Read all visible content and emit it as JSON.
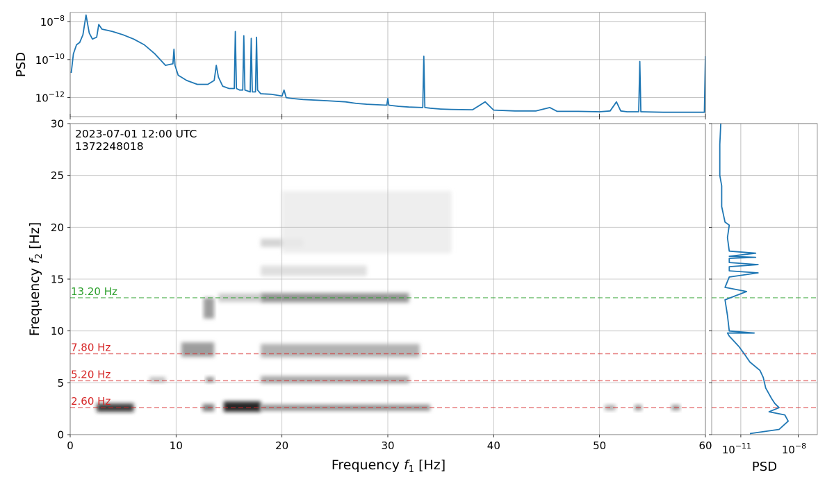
{
  "chart_data": [
    {
      "panel": "top-psd",
      "type": "line",
      "title": "",
      "xlabel": "",
      "ylabel": "PSD",
      "xlim": [
        0,
        60
      ],
      "ylim": [
        1e-13,
        3e-08
      ],
      "yscale": "log",
      "grid": true,
      "xticks": [
        0,
        10,
        20,
        30,
        40,
        50,
        60
      ],
      "yticks": [
        {
          "value": 1e-08,
          "base": "10",
          "exp": "−8"
        },
        {
          "value": 1e-10,
          "base": "10",
          "exp": "−10"
        },
        {
          "value": 1e-12,
          "base": "10",
          "exp": "−12"
        }
      ],
      "color": "#1f77b4",
      "x": [
        0.1,
        0.3,
        0.6,
        0.9,
        1.2,
        1.5,
        1.8,
        2.1,
        2.5,
        2.7,
        3.0,
        3.5,
        4,
        5,
        6,
        7,
        8,
        9,
        9.7,
        9.8,
        9.9,
        10.2,
        11,
        12,
        13,
        13.6,
        13.8,
        14.0,
        14.4,
        15,
        15.5,
        15.6,
        15.7,
        16,
        16.3,
        16.4,
        16.5,
        17,
        17.1,
        17.2,
        17.5,
        17.6,
        17.7,
        18,
        19,
        20,
        20.2,
        20.4,
        21,
        22,
        24,
        26,
        27,
        28,
        29.9,
        30,
        30.1,
        31,
        32,
        33.3,
        33.4,
        33.5,
        34,
        35,
        36,
        38,
        39.2,
        40,
        41,
        42,
        44,
        45.3,
        46,
        48,
        50,
        51,
        51.6,
        52,
        52.6,
        53,
        53.7,
        53.8,
        53.9,
        54,
        56,
        58,
        59.9,
        60
      ],
      "y": [
        2e-11,
        2e-10,
        6e-10,
        8e-10,
        2e-09,
        2.2e-08,
        2.5e-09,
        1.2e-09,
        1.5e-09,
        7e-09,
        4e-09,
        3.5e-09,
        3e-09,
        2e-09,
        1.2e-09,
        6e-10,
        2e-10,
        5e-11,
        6e-11,
        3.5e-10,
        5e-11,
        1.5e-11,
        8e-12,
        5e-12,
        5e-12,
        8e-12,
        5e-11,
        1.2e-11,
        4e-12,
        3e-12,
        3e-12,
        3e-09,
        3e-12,
        2.5e-12,
        2.5e-12,
        1.8e-09,
        2.5e-12,
        2e-12,
        1.3e-09,
        2e-12,
        2e-12,
        1.5e-09,
        2.5e-12,
        1.6e-12,
        1.5e-12,
        1.2e-12,
        2.5e-12,
        1e-12,
        9e-13,
        8e-13,
        7e-13,
        6e-13,
        5e-13,
        4.5e-13,
        4e-13,
        9e-13,
        4e-13,
        3.5e-13,
        3.2e-13,
        3e-13,
        1.5e-10,
        3e-13,
        2.8e-13,
        2.5e-13,
        2.4e-13,
        2.3e-13,
        6e-13,
        2.2e-13,
        2.1e-13,
        2e-13,
        2e-13,
        3e-13,
        1.9e-13,
        1.9e-13,
        1.8e-13,
        2e-13,
        6e-13,
        2e-13,
        1.8e-13,
        1.8e-13,
        1.8e-13,
        8e-11,
        1.8e-13,
        1.8e-13,
        1.7e-13,
        1.7e-13,
        1.7e-13,
        1.5e-10
      ]
    },
    {
      "panel": "spectrogram",
      "type": "heatmap",
      "title": "",
      "xlabel_text": "Frequency ",
      "xlabel_italic": "f",
      "xlabel_sub": "1",
      "xlabel_unit": " [Hz]",
      "ylabel_text": "Frequency ",
      "ylabel_italic": "f",
      "ylabel_sub": "2",
      "ylabel_unit": " [Hz]",
      "xlim": [
        0,
        60
      ],
      "ylim": [
        0,
        30
      ],
      "xticks": [
        0,
        10,
        20,
        30,
        40,
        50,
        60
      ],
      "yticks": [
        0,
        5,
        10,
        15,
        20,
        25,
        30
      ],
      "grid": true,
      "colormap": "gray_r",
      "annotation_lines": [
        "2023-07-01 12:00 UTC",
        "1372248018"
      ],
      "hlines": [
        {
          "y": 13.2,
          "label": "13.20 Hz",
          "color": "#2ca02c"
        },
        {
          "y": 7.8,
          "label": "7.80 Hz",
          "color": "#d62728"
        },
        {
          "y": 5.2,
          "label": "5.20 Hz",
          "color": "#d62728"
        },
        {
          "y": 2.6,
          "label": "2.60 Hz",
          "color": "#d62728"
        }
      ],
      "blobs": [
        {
          "x1": 2.5,
          "x2": 6,
          "y": 2.6,
          "h": 0.8,
          "v": 0.9
        },
        {
          "x1": 12.5,
          "x2": 13.6,
          "y": 2.6,
          "h": 0.7,
          "v": 0.6
        },
        {
          "x1": 14.5,
          "x2": 18,
          "y": 2.7,
          "h": 1.0,
          "v": 1.0
        },
        {
          "x1": 18,
          "x2": 34,
          "y": 2.6,
          "h": 0.6,
          "v": 0.5
        },
        {
          "x1": 50.5,
          "x2": 51.5,
          "y": 2.6,
          "h": 0.5,
          "v": 0.4
        },
        {
          "x1": 53.3,
          "x2": 54,
          "y": 2.6,
          "h": 0.5,
          "v": 0.5
        },
        {
          "x1": 56.8,
          "x2": 57.6,
          "y": 2.6,
          "h": 0.5,
          "v": 0.5
        },
        {
          "x1": 7.5,
          "x2": 9,
          "y": 5.3,
          "h": 0.5,
          "v": 0.3
        },
        {
          "x1": 12.8,
          "x2": 13.6,
          "y": 5.3,
          "h": 0.5,
          "v": 0.5
        },
        {
          "x1": 18,
          "x2": 32,
          "y": 5.3,
          "h": 0.7,
          "v": 0.4
        },
        {
          "x1": 10.5,
          "x2": 13.6,
          "y": 8.2,
          "h": 1.4,
          "v": 0.45
        },
        {
          "x1": 18,
          "x2": 33,
          "y": 8.1,
          "h": 1.3,
          "v": 0.35
        },
        {
          "x1": 12.6,
          "x2": 13.6,
          "y": 12.2,
          "h": 2.0,
          "v": 0.45
        },
        {
          "x1": 14,
          "x2": 18,
          "y": 13.2,
          "h": 0.8,
          "v": 0.25
        },
        {
          "x1": 18,
          "x2": 32,
          "y": 13.2,
          "h": 0.9,
          "v": 0.5
        },
        {
          "x1": 18,
          "x2": 28,
          "y": 15.8,
          "h": 1.0,
          "v": 0.15
        },
        {
          "x1": 18,
          "x2": 22,
          "y": 18.5,
          "h": 0.8,
          "v": 0.2
        },
        {
          "x1": 20,
          "x2": 36,
          "y": 20.5,
          "h": 6.0,
          "v": 0.08
        }
      ]
    },
    {
      "panel": "side-psd",
      "type": "line",
      "title": "",
      "xlabel": "PSD",
      "ylabel": "",
      "xscale": "log",
      "xlim": [
        3e-13,
        1e-07
      ],
      "ylim": [
        0,
        30
      ],
      "grid": true,
      "xticks": [
        {
          "value": 1e-11,
          "base": "10",
          "exp": "−11"
        },
        {
          "value": 1e-08,
          "base": "10",
          "exp": "−8"
        }
      ],
      "color": "#1f77b4",
      "hlines": [
        13.2,
        7.8,
        5.2,
        2.6
      ],
      "x": [
        3e-11,
        1e-09,
        3e-09,
        2e-09,
        3e-10,
        1e-09,
        6e-10,
        4e-10,
        2e-10,
        1.5e-10,
        1e-10,
        3e-11,
        1.5e-11,
        8e-12,
        2.5e-12,
        2e-12,
        5e-11,
        2.5e-12,
        2e-12,
        1.5e-12,
        2e-11,
        1.5e-12,
        2.5e-12,
        8e-11,
        2.5e-12,
        2.5e-12,
        8e-11,
        2.5e-12,
        2.5e-12,
        6e-11,
        2.5e-12,
        6e-11,
        2.5e-12,
        2e-12,
        2.5e-12,
        1.5e-12,
        1e-12,
        1e-12,
        8e-13,
        8e-13,
        8e-13,
        8e-13,
        9e-13
      ],
      "y": [
        0.1,
        0.5,
        1.3,
        1.9,
        2.2,
        2.6,
        3.0,
        3.5,
        4.5,
        5.5,
        6.2,
        7.0,
        7.8,
        8.5,
        9.5,
        9.8,
        9.8,
        10.0,
        11.5,
        13.0,
        13.8,
        14.2,
        15.2,
        15.6,
        15.8,
        16.2,
        16.4,
        16.6,
        17.0,
        17.1,
        17.2,
        17.5,
        17.7,
        19.0,
        20.2,
        20.5,
        22,
        24,
        25,
        26,
        27,
        28,
        30
      ]
    }
  ]
}
